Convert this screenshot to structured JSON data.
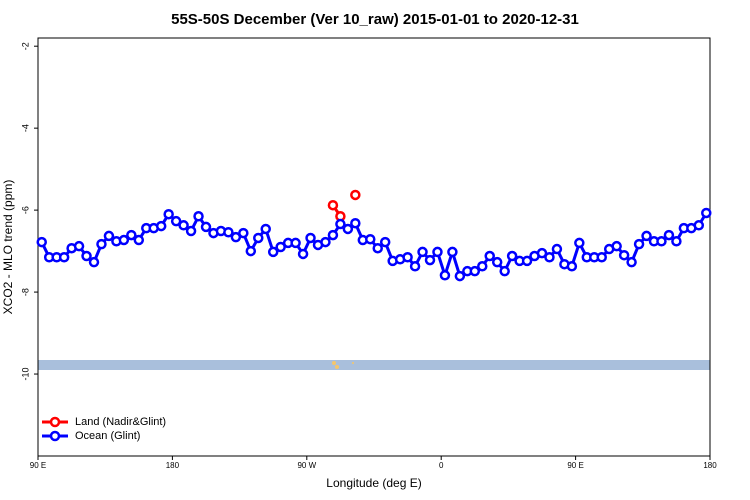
{
  "chart_data": {
    "type": "line",
    "title": "55S-50S December (Ver 10_raw)   2015-01-01 to 2020-12-31",
    "xlabel": "Longitude (deg E)",
    "ylabel": "XCO2 - MLO trend (ppm)",
    "xlim": [
      90,
      540
    ],
    "ylim": [
      -12,
      -1.8
    ],
    "xticks": [
      {
        "value": 90,
        "label": "90 E"
      },
      {
        "value": 180,
        "label": "180"
      },
      {
        "value": 270,
        "label": "90 W"
      },
      {
        "value": 360,
        "label": "0"
      },
      {
        "value": 450,
        "label": "90 E"
      },
      {
        "value": 540,
        "label": "180"
      }
    ],
    "yticks": [
      -2,
      -4,
      -6,
      -8,
      -10
    ],
    "legend": "bottom-left",
    "series": [
      {
        "name": "Land (Nadir&Glint)",
        "color": "#ff0000",
        "x": [
          287.5,
          292.5,
          297.5,
          302.5
        ],
        "values": [
          -5.88,
          -6.15,
          null,
          -5.63
        ]
      },
      {
        "name": "Ocean (Glint)",
        "color": "#0000ff",
        "x": [
          92.5,
          97.5,
          102.5,
          107.5,
          112.5,
          117.5,
          122.5,
          127.5,
          132.5,
          137.5,
          142.5,
          147.5,
          152.5,
          157.5,
          162.5,
          167.5,
          172.5,
          177.5,
          182.5,
          187.5,
          192.5,
          197.5,
          202.5,
          207.5,
          212.5,
          217.5,
          222.5,
          227.5,
          232.5,
          237.5,
          242.5,
          247.5,
          252.5,
          257.5,
          262.5,
          267.5,
          272.5,
          277.5,
          282.5,
          287.5,
          292.5,
          297.5,
          302.5,
          307.5,
          312.5,
          317.5,
          322.5,
          327.5,
          332.5,
          337.5,
          342.5,
          347.5,
          352.5,
          357.5,
          362.5,
          367.5,
          372.5,
          377.5,
          382.5,
          387.5,
          392.5,
          397.5,
          402.5,
          407.5,
          412.5,
          417.5,
          422.5,
          427.5,
          432.5,
          437.5,
          442.5,
          447.5,
          452.5,
          457.5,
          462.5,
          467.5,
          472.5,
          477.5,
          482.5,
          487.5,
          492.5,
          497.5,
          502.5,
          507.5,
          512.5,
          517.5,
          522.5,
          527.5,
          532.5,
          537.5
        ],
        "values": [
          -6.78,
          -7.15,
          -7.15,
          -7.15,
          -6.93,
          -6.88,
          -7.12,
          -7.27,
          -6.83,
          -6.63,
          -6.76,
          -6.73,
          -6.61,
          -6.73,
          -6.44,
          -6.44,
          -6.39,
          -6.1,
          -6.27,
          -6.37,
          -6.51,
          -6.15,
          -6.41,
          -6.56,
          -6.51,
          -6.54,
          -6.66,
          -6.56,
          -7.0,
          -6.68,
          -6.46,
          -7.02,
          -6.9,
          -6.8,
          -6.8,
          -7.07,
          -6.68,
          -6.85,
          -6.78,
          -6.61,
          -6.34,
          -6.46,
          -6.32,
          -6.73,
          -6.71,
          -6.93,
          -6.78,
          -7.24,
          -7.2,
          -7.15,
          -7.37,
          -7.02,
          -7.22,
          -7.02,
          -7.59,
          -7.02,
          -7.61,
          -7.49,
          -7.49,
          -7.37,
          -7.12,
          -7.27,
          -7.49,
          -7.12,
          -7.24,
          -7.24,
          -7.12,
          -7.05,
          -7.15,
          -6.95,
          -7.32,
          -7.37,
          -6.8,
          -7.15,
          -7.15,
          -7.15,
          -6.95,
          -6.88,
          -7.1,
          -7.27,
          -6.83,
          -6.63,
          -6.76,
          -6.76,
          -6.61,
          -6.76,
          -6.44,
          -6.44,
          -6.37,
          -6.07
        ]
      }
    ]
  }
}
